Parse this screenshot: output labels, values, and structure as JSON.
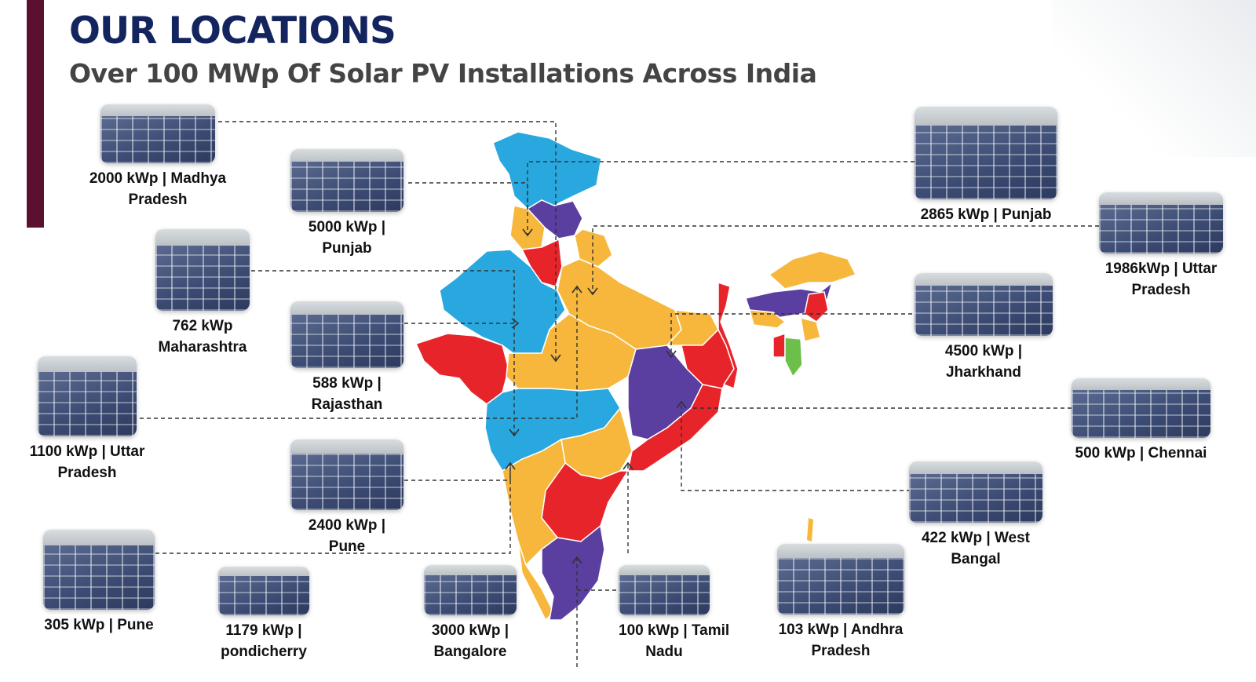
{
  "header": {
    "title": "OUR LOCATIONS",
    "subtitle": "Over 100 MWp Of Solar PV Installations Across India"
  },
  "colors": {
    "title": "#14245e",
    "accent_bar": "#5b1030",
    "map_blue": "#29a8df",
    "map_orange": "#f6b73c",
    "map_red": "#e8242b",
    "map_purple": "#5a3fa0",
    "map_green": "#6cc04a"
  },
  "installations": [
    {
      "line1": "2000 kWp | Madhya",
      "line2": "Pradesh"
    },
    {
      "line1": "5000 kWp   |",
      "line2": "Punjab"
    },
    {
      "line1": "762 kWp",
      "line2": "Maharashtra"
    },
    {
      "line1": "588 kWp |",
      "line2": "Rajasthan"
    },
    {
      "line1": "1100 kWp | Uttar",
      "line2": "Pradesh"
    },
    {
      "line1": "2400 kWp   |",
      "line2": "Pune"
    },
    {
      "line1": "305 kWp    |   Pune",
      "line2": ""
    },
    {
      "line1": "1179 kWp |",
      "line2": "pondicherry"
    },
    {
      "line1": "3000 kWp |",
      "line2": "Bangalore"
    },
    {
      "line1": "100 kWp | Tamil",
      "line2": "Nadu"
    },
    {
      "line1": "103 kWp | Andhra",
      "line2": "Pradesh"
    },
    {
      "line1": "422 kWp    | West",
      "line2": "Bangal"
    },
    {
      "line1": "500 kWp    |   Chennai",
      "line2": ""
    },
    {
      "line1": "4500 kWp  |",
      "line2": "Jharkhand"
    },
    {
      "line1": "1986kWp  |  Uttar",
      "line2": "Pradesh"
    },
    {
      "line1": "2865 kWp   |  Punjab",
      "line2": ""
    }
  ]
}
